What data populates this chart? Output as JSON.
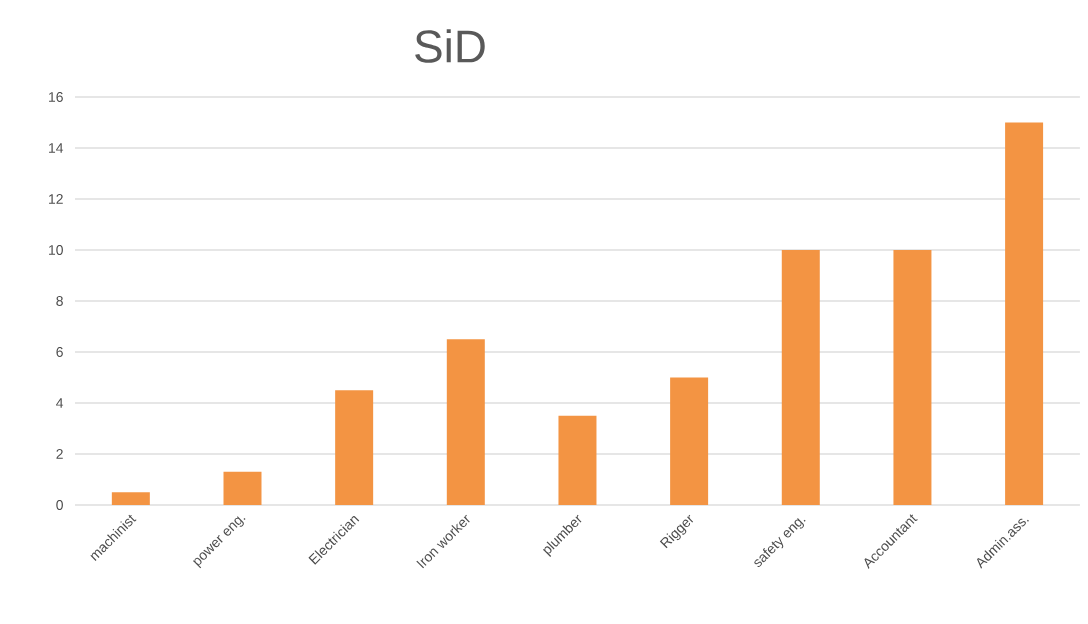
{
  "chart_data": {
    "type": "bar",
    "title": "SiD",
    "categories": [
      "machinist",
      "power eng.",
      "Electrician",
      "Iron worker",
      "plumber",
      "Rigger",
      "safety eng.",
      "Accountant",
      "Admin.ass."
    ],
    "values": [
      0.5,
      1.3,
      4.5,
      6.5,
      3.5,
      5,
      10,
      10,
      15
    ],
    "color": "#f39443",
    "ylim": [
      0,
      16
    ],
    "yticks": [
      0,
      2,
      4,
      6,
      8,
      10,
      12,
      14,
      16
    ],
    "grid": "y"
  }
}
